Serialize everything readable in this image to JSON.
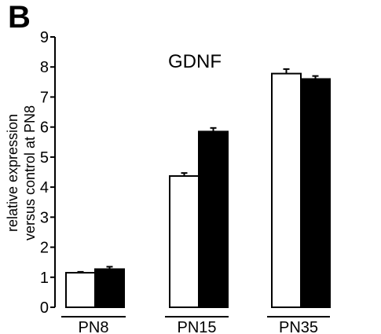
{
  "panel_label": "B",
  "chart_data": {
    "type": "bar",
    "title": "GDNF",
    "ylabel": "relative expression versus control at PN8",
    "ylabel_lines": [
      "relative expression",
      "versus control at PN8"
    ],
    "xlabel": "",
    "categories": [
      "PN8",
      "PN15",
      "PN35"
    ],
    "series": [
      {
        "fill": "#ffffff",
        "values": [
          1.15,
          4.37,
          7.78
        ],
        "errors": [
          0.03,
          0.1,
          0.15
        ]
      },
      {
        "fill": "#000000",
        "values": [
          1.27,
          5.85,
          7.6
        ],
        "errors": [
          0.08,
          0.12,
          0.1
        ]
      }
    ],
    "ylim": [
      0,
      9
    ],
    "yticks": [
      0,
      1,
      2,
      3,
      4,
      5,
      6,
      7,
      8,
      9
    ],
    "grid": false,
    "legend": "none"
  }
}
